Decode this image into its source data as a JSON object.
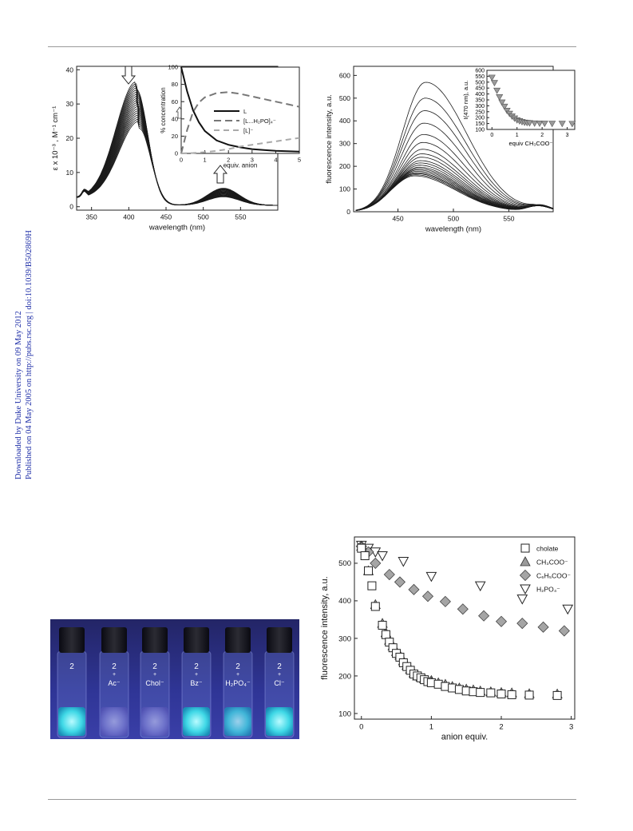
{
  "sidebar": {
    "line1": "Downloaded by Duke University on 09 May 2012",
    "line2": "Published on 04 May 2005 on http://pubs.rsc.org | doi:10.1039/B502869H"
  },
  "photo": {
    "vials": [
      {
        "top": "2",
        "bottom": ""
      },
      {
        "top": "2",
        "plus": "+",
        "bottom": "Ac⁻"
      },
      {
        "top": "2",
        "plus": "+",
        "bottom": "Chol⁻"
      },
      {
        "top": "2",
        "plus": "+",
        "bottom": "Bz⁻"
      },
      {
        "top": "2",
        "plus": "+",
        "bottom": "H₂PO₄⁻"
      },
      {
        "top": "2",
        "plus": "+",
        "bottom": "Cl⁻"
      }
    ]
  },
  "chart_data": [
    {
      "type": "line",
      "panel": "absorption",
      "xlabel": "wavelength (nm)",
      "ylabel": "ε x 10⁻³ , M⁻¹ cm⁻¹",
      "xlim": [
        330,
        600
      ],
      "ylim": [
        -1,
        41
      ],
      "xticks": [
        350,
        400,
        450,
        500,
        550
      ],
      "yticks": [
        0,
        10,
        20,
        30,
        40
      ],
      "series_count": 20,
      "peak1_nm": 410,
      "peak1_eps_range": [
        22.5,
        34
      ],
      "peak2_nm": 527,
      "peak2_eps_range": [
        2.5,
        5
      ],
      "arrows": [
        "down at 400 nm",
        "up at 527 nm"
      ],
      "inset": {
        "type": "line",
        "xlabel": "equiv. anion",
        "ylabel": "% concentration",
        "xlim": [
          0,
          5
        ],
        "ylim": [
          0,
          100
        ],
        "xticks": [
          0,
          1,
          2,
          3,
          4,
          5
        ],
        "yticks": [
          0,
          20,
          40,
          60,
          80,
          100
        ],
        "legend": [
          "L",
          "[L...H₂PO]₄⁻",
          "[L]⁻"
        ],
        "series": [
          {
            "name": "L",
            "x": [
              0,
              0.25,
              0.5,
              0.75,
              1,
              1.5,
              2,
              2.5,
              3,
              3.5,
              4,
              4.5,
              5
            ],
            "values": [
              100,
              72,
              50,
              36,
              26,
              15,
              10,
              7,
              5,
              4,
              3,
              2.5,
              2
            ]
          },
          {
            "name": "[L...H₂PO]₄⁻",
            "x": [
              0,
              0.25,
              0.5,
              0.75,
              1,
              1.5,
              2,
              2.5,
              3,
              3.5,
              4,
              4.5,
              5
            ],
            "values": [
              0,
              27,
              48,
              59,
              65,
              70,
              71,
              69,
              66,
              63,
              60,
              57,
              54
            ]
          },
          {
            "name": "[L]⁻",
            "x": [
              0,
              0.5,
              1,
              1.5,
              2,
              2.5,
              3,
              3.5,
              4,
              4.5,
              5
            ],
            "values": [
              0,
              0.5,
              1.5,
              3,
              5,
              8,
              10,
              12,
              14,
              16,
              18
            ]
          }
        ]
      }
    },
    {
      "type": "line",
      "panel": "fluorescence",
      "xlabel": "wavelength (nm)",
      "ylabel": "fluorescence intensity, a.u.",
      "xlim": [
        410,
        590
      ],
      "ylim": [
        0,
        640
      ],
      "xticks": [
        450,
        500,
        550
      ],
      "yticks": [
        0,
        100,
        200,
        300,
        400,
        500,
        600
      ],
      "series_count": 20,
      "peak_nm_range": [
        465,
        475
      ],
      "peak_values": [
        570,
        500,
        445,
        390,
        340,
        305,
        275,
        255,
        240,
        225,
        215,
        205,
        196,
        190,
        184,
        178,
        172,
        168,
        163,
        158
      ],
      "inset": {
        "type": "scatter",
        "xlabel": "equiv CH₃COO⁻",
        "ylabel": "I(470 nm), a.u.",
        "xlim": [
          -0.2,
          3.3
        ],
        "ylim": [
          100,
          600
        ],
        "xticks": [
          0,
          1,
          2,
          3
        ],
        "yticks": [
          100,
          150,
          200,
          250,
          300,
          350,
          400,
          450,
          500,
          550,
          600
        ],
        "x": [
          0,
          0.1,
          0.2,
          0.3,
          0.4,
          0.5,
          0.6,
          0.7,
          0.8,
          0.9,
          1.0,
          1.1,
          1.2,
          1.3,
          1.4,
          1.5,
          1.7,
          1.9,
          2.1,
          2.4,
          2.8,
          3.2
        ],
        "values": [
          540,
          495,
          430,
          375,
          330,
          295,
          260,
          235,
          212,
          195,
          180,
          172,
          165,
          160,
          157,
          155,
          153,
          152,
          151,
          150,
          150,
          149
        ]
      }
    },
    {
      "type": "scatter",
      "panel": "titration",
      "xlabel": "anion equiv.",
      "ylabel": "fluorescence intensity, a.u.",
      "xlim": [
        -0.1,
        3.05
      ],
      "ylim": [
        85,
        570
      ],
      "xticks": [
        0,
        1,
        2,
        3
      ],
      "yticks": [
        100,
        200,
        300,
        400,
        500
      ],
      "legend_position": "top-right",
      "series": [
        {
          "name": "cholate",
          "marker": "square",
          "x": [
            0,
            0.05,
            0.1,
            0.15,
            0.2,
            0.3,
            0.35,
            0.4,
            0.45,
            0.5,
            0.55,
            0.6,
            0.65,
            0.7,
            0.75,
            0.8,
            0.85,
            0.9,
            0.95,
            1.0,
            1.1,
            1.2,
            1.3,
            1.4,
            1.5,
            1.6,
            1.7,
            1.85,
            2.0,
            2.15,
            2.4,
            2.8
          ],
          "values": [
            540,
            520,
            480,
            440,
            385,
            335,
            310,
            290,
            275,
            260,
            250,
            235,
            225,
            215,
            205,
            200,
            195,
            190,
            185,
            182,
            178,
            172,
            168,
            164,
            160,
            158,
            156,
            155,
            152,
            150,
            149,
            148
          ]
        },
        {
          "name": "CH₃COO⁻",
          "marker": "triangle",
          "x": [
            0,
            0.1,
            0.2,
            0.3,
            0.35,
            0.4,
            0.45,
            0.5,
            0.55,
            0.6,
            0.65,
            0.7,
            0.75,
            0.8,
            0.85,
            0.9,
            1.0,
            1.1,
            1.2,
            1.3,
            1.4,
            1.5,
            1.6,
            1.7,
            1.85,
            2.0,
            2.15,
            2.4,
            2.8
          ],
          "values": [
            545,
            480,
            390,
            340,
            315,
            295,
            280,
            265,
            255,
            240,
            228,
            218,
            208,
            200,
            197,
            193,
            188,
            182,
            178,
            172,
            168,
            165,
            163,
            160,
            158,
            156,
            155,
            153,
            152
          ]
        },
        {
          "name": "C₆H₅COO⁻",
          "marker": "diamond",
          "x": [
            0,
            0.1,
            0.2,
            0.4,
            0.55,
            0.75,
            0.95,
            1.2,
            1.45,
            1.75,
            2.0,
            2.3,
            2.6,
            2.9
          ],
          "values": [
            545,
            530,
            500,
            470,
            450,
            430,
            412,
            398,
            378,
            360,
            345,
            340,
            330,
            320
          ]
        },
        {
          "name": "H₂PO₄⁻",
          "marker": "triangle-down",
          "x": [
            0,
            0.1,
            0.2,
            0.3,
            0.6,
            1.0,
            1.7,
            2.3,
            2.95
          ],
          "values": [
            548,
            540,
            530,
            520,
            505,
            465,
            440,
            405,
            378
          ]
        }
      ]
    }
  ]
}
